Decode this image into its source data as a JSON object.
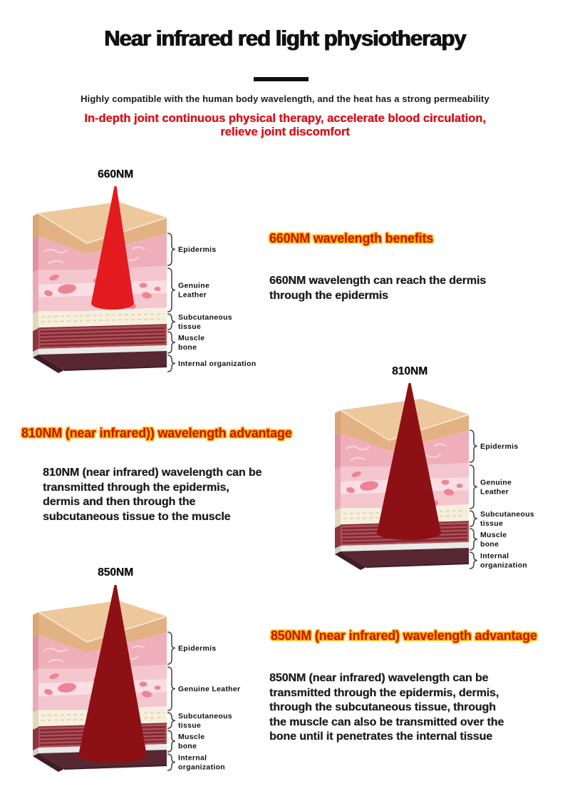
{
  "header": {
    "title": "Near infrared red light physiotherapy",
    "subtitle": "Highly compatible with the human body wavelength, and the heat has a strong permeability",
    "tagline": "In-depth joint continuous physical therapy, accelerate blood circulation,\nrelieve joint discomfort"
  },
  "sections": [
    {
      "nm": "660NM",
      "heading": "660NM wavelength benefits",
      "body": "660NM wavelength can reach the dermis\nthrough the epidermis",
      "cone": {
        "color": "#e31a1e",
        "reaches": "dermis"
      },
      "layer_labels": [
        [
          "Epidermis"
        ],
        [
          "Genuine",
          "Leather"
        ],
        [
          "Subcutaneous",
          "tissue"
        ],
        [
          "Muscle",
          "bone"
        ],
        [
          "Internal organization"
        ]
      ]
    },
    {
      "nm": "810NM",
      "heading": "810NM (near infrared)) wavelength advantage",
      "body": "810NM (near infrared) wavelength can be\ntransmitted through the epidermis,\ndermis and then through the\nsubcutaneous tissue to the muscle",
      "cone": {
        "color": "#8d1015",
        "reaches": "muscle"
      },
      "layer_labels": [
        [
          "Epidermis"
        ],
        [
          "Genuine",
          "Leather"
        ],
        [
          "Subcutaneous",
          "tissue"
        ],
        [
          "Muscle",
          "bone"
        ],
        [
          "Internal",
          "organization"
        ]
      ]
    },
    {
      "nm": "850NM",
      "heading": "850NM (near infrared) wavelength advantage",
      "body": "850NM (near infrared) wavelength can be\ntransmitted through the epidermis, dermis,\nthrough the subcutaneous tissue, through\nthe muscle can also be transmitted over the\nbone until it penetrates the internal tissue",
      "cone": {
        "color": "#8d1015",
        "reaches": "internal tissue"
      },
      "layer_labels": [
        [
          "Epidermis"
        ],
        [
          "Genuine Leather"
        ],
        [
          "Subcutaneous",
          "tissue"
        ],
        [
          "Muscle",
          "bone"
        ],
        [
          "Internal",
          "organization"
        ]
      ]
    }
  ],
  "palette": {
    "accent_red": "#d8131b",
    "heading_red": "#c41303",
    "glow": "#ffb100",
    "glow_soft": "#ffd24d",
    "skin_top": "#ecc89c",
    "skin_top_side": "#d9a572",
    "skin_band": "#e2b184",
    "band_highlight": "#f6e2c3",
    "epidermis": "#efafba",
    "epidermis_side": "#dd93a2",
    "epidermis_wave": "#f8d6d8",
    "dermis": "#f4c6ce",
    "dermis_light": "#fadee4",
    "dermis_side": "#e8aab6",
    "cell": "#ec8494",
    "subcut": "#f6efdd",
    "subcut_side": "#e3d8bd",
    "subcut_dash": "#e4d4b2",
    "muscle": "#b25058",
    "muscle_dark": "#7c2933",
    "muscle_side": "#8c3640",
    "bone": "#e8eae6",
    "bone_side": "#cdd1cc",
    "internal": "#572832",
    "internal_side": "#3f1d26",
    "brace": "#4c4c4c",
    "label": "#111111"
  }
}
